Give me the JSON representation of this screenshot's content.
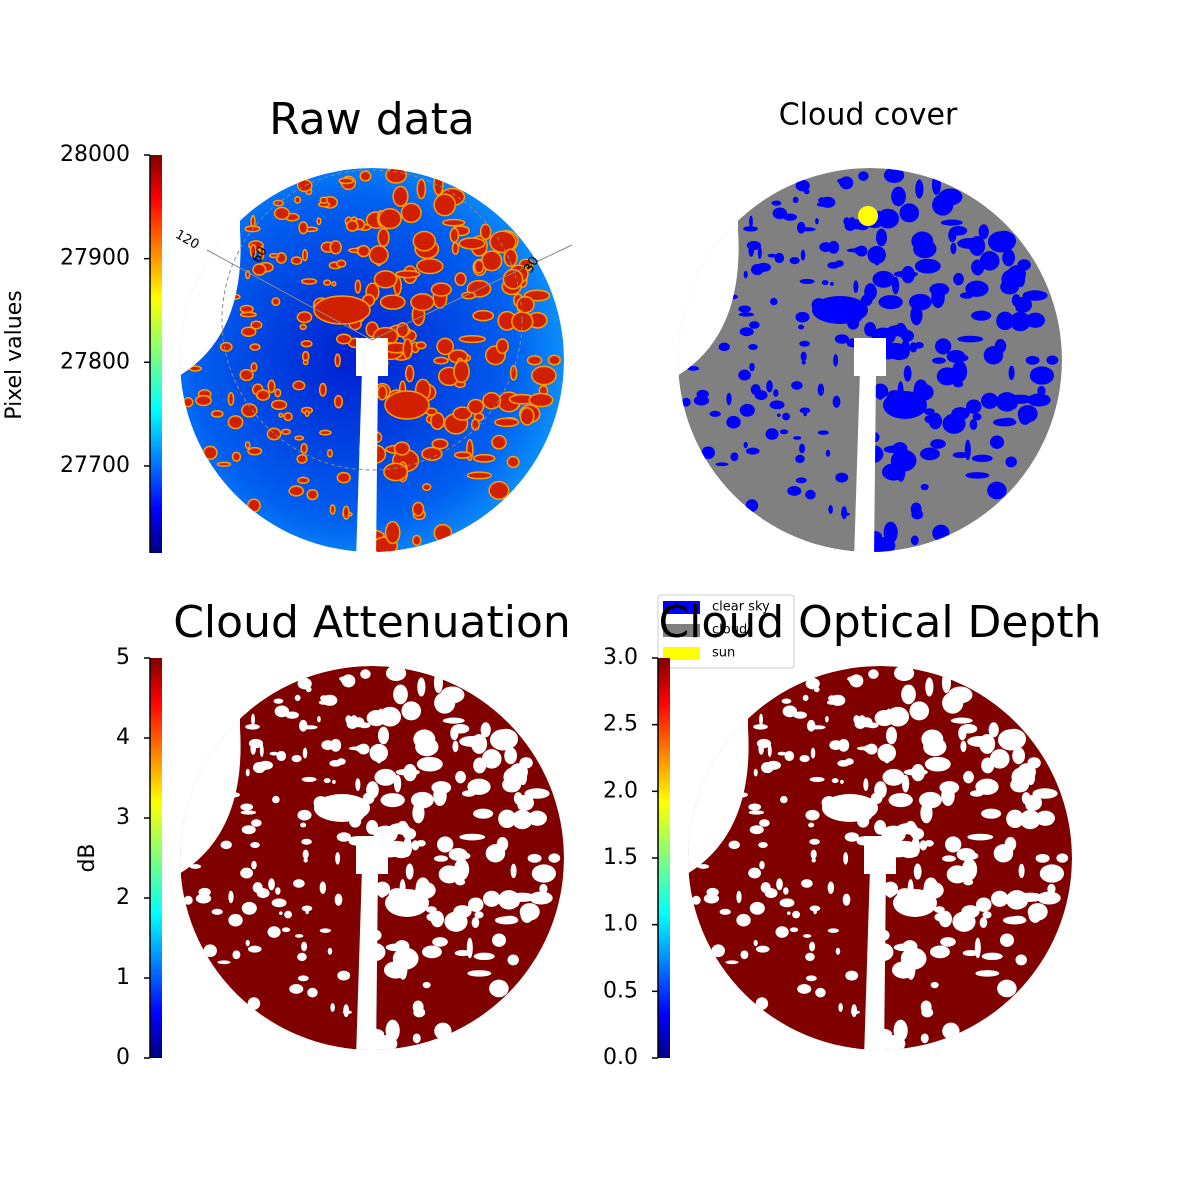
{
  "chart_data": [
    {
      "type": "image",
      "title": "Raw data",
      "colorbar": {
        "label": "Pixel values",
        "lim": [
          27616,
          28000
        ],
        "ticks": [
          27700,
          27800,
          27900,
          28000
        ],
        "colormap": "jet"
      },
      "grid_labels": [
        "120",
        "60",
        "30"
      ]
    },
    {
      "type": "image",
      "title": "Cloud cover",
      "legend": [
        {
          "label": "clear sky",
          "color": "#0000ff"
        },
        {
          "label": "cloud",
          "color": "#808080"
        },
        {
          "label": "sun",
          "color": "#ffff00"
        }
      ]
    },
    {
      "type": "image",
      "title": "Cloud Attenuation",
      "colorbar": {
        "label": "dB",
        "lim": [
          0,
          5
        ],
        "ticks": [
          0,
          1,
          2,
          3,
          4,
          5
        ],
        "colormap": "jet"
      }
    },
    {
      "type": "image",
      "title": "Cloud Optical Depth",
      "colorbar": {
        "lim": [
          0,
          3
        ],
        "ticks": [
          {
            "value": 0,
            "label": "0.0"
          },
          {
            "value": 0.5,
            "label": "0.5"
          },
          {
            "value": 1,
            "label": "1.0"
          },
          {
            "value": 1.5,
            "label": "1.5"
          },
          {
            "value": 2,
            "label": "2.0"
          },
          {
            "value": 2.5,
            "label": "2.5"
          },
          {
            "value": 3,
            "label": "3.0"
          }
        ],
        "colormap": "jet"
      }
    }
  ]
}
